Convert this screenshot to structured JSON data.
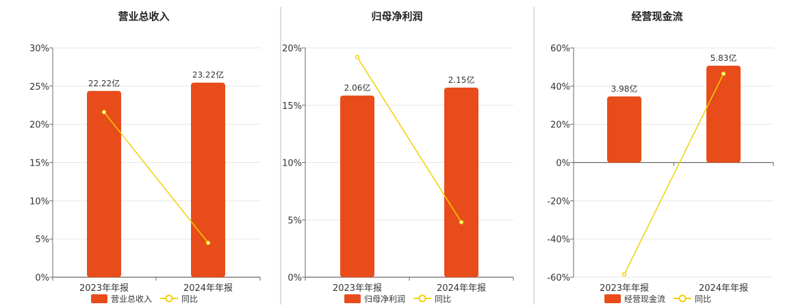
{
  "colors": {
    "bar": "#e84c1a",
    "line": "#f2d000",
    "grid": "#e6e6e6",
    "axis": "#666666",
    "divider": "#bbbbbb"
  },
  "chart_data": [
    {
      "type": "bar",
      "title": "营业总收入",
      "categories": [
        "2023年年报",
        "2024年年报"
      ],
      "bar_series": {
        "name": "营业总收入",
        "values": [
          22.22,
          23.22
        ],
        "labels": [
          "22.22亿",
          "23.22亿"
        ]
      },
      "line_series": {
        "name": "同比",
        "values": [
          21.6,
          4.5
        ]
      },
      "ylim": [
        0,
        30
      ],
      "yticks": [
        0,
        5,
        10,
        15,
        20,
        25,
        30
      ],
      "ytick_labels": [
        "0%",
        "5%",
        "10%",
        "15%",
        "20%",
        "25%",
        "30%"
      ],
      "bar_scale_max": 27.36,
      "grid": true,
      "legend_position": "bottom"
    },
    {
      "type": "bar",
      "title": "归母净利润",
      "categories": [
        "2023年年报",
        "2024年年报"
      ],
      "bar_series": {
        "name": "归母净利润",
        "values": [
          2.06,
          2.15
        ],
        "labels": [
          "2.06亿",
          "2.15亿"
        ]
      },
      "line_series": {
        "name": "同比",
        "values": [
          19.2,
          4.8
        ]
      },
      "ylim": [
        0,
        20
      ],
      "yticks": [
        0,
        5,
        10,
        15,
        20
      ],
      "ytick_labels": [
        "0%",
        "5%",
        "10%",
        "15%",
        "20%"
      ],
      "bar_scale_max": 2.6,
      "grid": true,
      "legend_position": "bottom"
    },
    {
      "type": "bar",
      "title": "经营现金流",
      "categories": [
        "2023年年报",
        "2024年年报"
      ],
      "bar_series": {
        "name": "经营现金流",
        "values": [
          3.98,
          5.83
        ],
        "labels": [
          "3.98亿",
          "5.83亿"
        ]
      },
      "line_series": {
        "name": "同比",
        "values": [
          -58.5,
          46.5
        ]
      },
      "ylim": [
        -60,
        60
      ],
      "yticks": [
        -60,
        -40,
        -20,
        0,
        20,
        40,
        60
      ],
      "ytick_labels": [
        "-60%",
        "-40%",
        "-20%",
        "0%",
        "20%",
        "40%",
        "60%"
      ],
      "bar_scale_max": 6.9,
      "grid": true,
      "legend_position": "bottom"
    }
  ]
}
